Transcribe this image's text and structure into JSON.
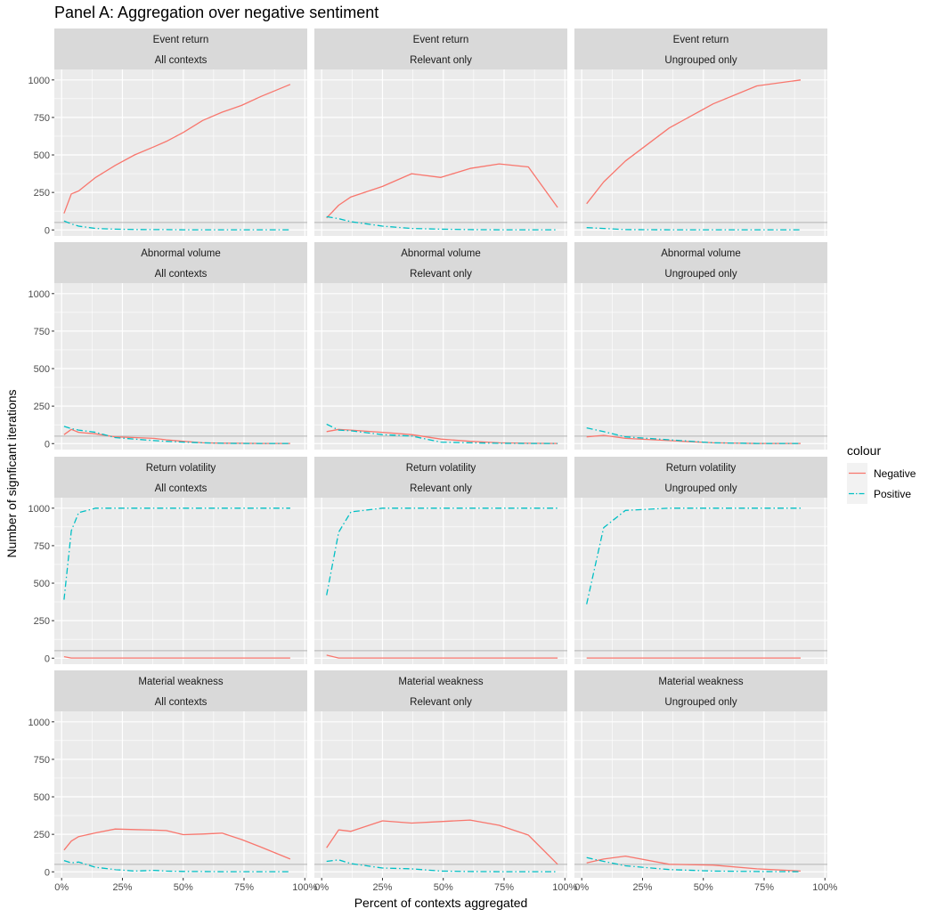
{
  "title": "Panel A: Aggregation over negative sentiment",
  "chart_data": {
    "type": "line",
    "title": "Panel A: Aggregation over negative sentiment",
    "xlabel": "Percent of contexts aggregated",
    "ylabel": "Number of signficant iterations",
    "xlim": [
      -3,
      101
    ],
    "ylim": [
      -40,
      1070
    ],
    "x_ticks": [
      0,
      25,
      50,
      75,
      100
    ],
    "x_tick_labels": [
      "0%",
      "25%",
      "50%",
      "75%",
      "100%"
    ],
    "y_ticks": [
      0,
      250,
      500,
      750,
      1000
    ],
    "y_tick_labels": [
      "0",
      "250",
      "500",
      "750",
      "1000"
    ],
    "reference_line_y": 50,
    "grid": true,
    "legend": {
      "title": "colour",
      "position": "right",
      "entries": [
        {
          "name": "Negative",
          "color": "#F8766D",
          "dash": "solid"
        },
        {
          "name": "Positive",
          "color": "#00BFC4",
          "dash": "dashdot"
        }
      ]
    },
    "row_labels": [
      "Event return",
      "Abnormal volume",
      "Return volatility",
      "Material weakness"
    ],
    "col_labels": [
      "All contexts",
      "Relevant only",
      "Ungrouped only"
    ],
    "panels": [
      [
        {
          "series": [
            {
              "name": "Negative",
              "x": [
                1,
                4,
                7,
                14,
                22,
                30,
                38,
                43,
                50,
                58,
                66,
                74,
                82,
                94
              ],
              "y": [
                110,
                240,
                260,
                350,
                430,
                500,
                555,
                590,
                650,
                730,
                785,
                830,
                890,
                970
              ]
            },
            {
              "name": "Positive",
              "x": [
                1,
                4,
                7,
                14,
                22,
                30,
                38,
                43,
                50,
                58,
                66,
                74,
                82,
                94
              ],
              "y": [
                60,
                40,
                25,
                10,
                5,
                3,
                2,
                2,
                1,
                1,
                1,
                1,
                1,
                1
              ]
            }
          ]
        },
        {
          "series": [
            {
              "name": "Negative",
              "x": [
                2,
                7,
                12,
                25,
                37,
                49,
                61,
                73,
                85,
                97
              ],
              "y": [
                80,
                165,
                220,
                290,
                375,
                350,
                410,
                440,
                420,
                150
              ]
            },
            {
              "name": "Positive",
              "x": [
                2,
                7,
                12,
                25,
                37,
                49,
                61,
                73,
                85,
                97
              ],
              "y": [
                88,
                75,
                55,
                25,
                10,
                5,
                2,
                1,
                1,
                1
              ]
            }
          ]
        },
        {
          "series": [
            {
              "name": "Negative",
              "x": [
                2,
                9,
                18,
                36,
                54,
                72,
                90
              ],
              "y": [
                175,
                320,
                460,
                680,
                840,
                960,
                1000
              ]
            },
            {
              "name": "Positive",
              "x": [
                2,
                9,
                18,
                36,
                54,
                72,
                90
              ],
              "y": [
                15,
                10,
                2,
                1,
                1,
                1,
                1
              ]
            }
          ]
        }
      ],
      [
        {
          "series": [
            {
              "name": "Negative",
              "x": [
                1,
                4,
                7,
                14,
                22,
                30,
                38,
                43,
                50,
                58,
                66,
                74,
                82,
                94
              ],
              "y": [
                60,
                95,
                75,
                65,
                45,
                40,
                35,
                25,
                15,
                5,
                3,
                2,
                1,
                1
              ]
            },
            {
              "name": "Positive",
              "x": [
                1,
                4,
                7,
                14,
                22,
                30,
                38,
                43,
                50,
                58,
                66,
                74,
                82,
                94
              ],
              "y": [
                115,
                100,
                90,
                75,
                40,
                30,
                20,
                15,
                10,
                5,
                2,
                1,
                1,
                1
              ]
            }
          ]
        },
        {
          "series": [
            {
              "name": "Negative",
              "x": [
                2,
                7,
                12,
                25,
                37,
                49,
                61,
                73,
                85,
                97
              ],
              "y": [
                80,
                95,
                90,
                75,
                60,
                30,
                15,
                5,
                2,
                1
              ]
            },
            {
              "name": "Positive",
              "x": [
                2,
                7,
                12,
                25,
                37,
                49,
                61,
                73,
                85,
                97
              ],
              "y": [
                130,
                90,
                85,
                60,
                50,
                10,
                5,
                2,
                1,
                1
              ]
            }
          ]
        },
        {
          "series": [
            {
              "name": "Negative",
              "x": [
                2,
                9,
                18,
                36,
                54,
                72,
                90
              ],
              "y": [
                45,
                55,
                35,
                20,
                5,
                1,
                1
              ]
            },
            {
              "name": "Positive",
              "x": [
                2,
                9,
                18,
                36,
                54,
                72,
                90
              ],
              "y": [
                105,
                80,
                45,
                25,
                5,
                1,
                1
              ]
            }
          ]
        }
      ],
      [
        {
          "series": [
            {
              "name": "Negative",
              "x": [
                1,
                4,
                7,
                14,
                22,
                30,
                38,
                43,
                50,
                58,
                66,
                74,
                82,
                94
              ],
              "y": [
                10,
                1,
                1,
                1,
                1,
                1,
                1,
                1,
                1,
                1,
                1,
                1,
                1,
                1
              ]
            },
            {
              "name": "Positive",
              "x": [
                1,
                4,
                7,
                14,
                22,
                30,
                38,
                43,
                50,
                58,
                66,
                74,
                82,
                94
              ],
              "y": [
                390,
                850,
                970,
                1000,
                1000,
                1000,
                1000,
                1000,
                1000,
                1000,
                1000,
                1000,
                1000,
                1000
              ]
            }
          ]
        },
        {
          "series": [
            {
              "name": "Negative",
              "x": [
                2,
                7,
                12,
                25,
                37,
                49,
                61,
                73,
                85,
                97
              ],
              "y": [
                20,
                1,
                1,
                1,
                1,
                1,
                1,
                1,
                1,
                1
              ]
            },
            {
              "name": "Positive",
              "x": [
                2,
                7,
                12,
                25,
                37,
                49,
                61,
                73,
                85,
                97
              ],
              "y": [
                420,
                840,
                975,
                1000,
                1000,
                1000,
                1000,
                1000,
                1000,
                1000
              ]
            }
          ]
        },
        {
          "series": [
            {
              "name": "Negative",
              "x": [
                2,
                9,
                18,
                36,
                54,
                72,
                90
              ],
              "y": [
                1,
                1,
                1,
                1,
                1,
                1,
                1
              ]
            },
            {
              "name": "Positive",
              "x": [
                2,
                9,
                18,
                36,
                54,
                72,
                90
              ],
              "y": [
                360,
                870,
                985,
                1000,
                1000,
                1000,
                1000
              ]
            }
          ]
        }
      ],
      [
        {
          "series": [
            {
              "name": "Negative",
              "x": [
                1,
                4,
                7,
                14,
                22,
                30,
                38,
                43,
                50,
                58,
                66,
                74,
                82,
                94
              ],
              "y": [
                145,
                205,
                235,
                260,
                285,
                282,
                278,
                275,
                248,
                252,
                258,
                215,
                165,
                85
              ]
            },
            {
              "name": "Positive",
              "x": [
                1,
                4,
                7,
                14,
                22,
                30,
                38,
                43,
                50,
                58,
                66,
                74,
                82,
                94
              ],
              "y": [
                75,
                60,
                65,
                30,
                15,
                5,
                10,
                5,
                3,
                2,
                1,
                1,
                1,
                1
              ]
            }
          ]
        },
        {
          "series": [
            {
              "name": "Negative",
              "x": [
                2,
                7,
                12,
                25,
                37,
                49,
                61,
                73,
                85,
                97
              ],
              "y": [
                160,
                280,
                270,
                340,
                325,
                335,
                345,
                310,
                245,
                50
              ]
            },
            {
              "name": "Positive",
              "x": [
                2,
                7,
                12,
                25,
                37,
                49,
                61,
                73,
                85,
                97
              ],
              "y": [
                70,
                80,
                55,
                25,
                20,
                5,
                2,
                1,
                1,
                1
              ]
            }
          ]
        },
        {
          "series": [
            {
              "name": "Negative",
              "x": [
                2,
                9,
                18,
                36,
                54,
                72,
                90
              ],
              "y": [
                60,
                85,
                105,
                50,
                45,
                20,
                5
              ]
            },
            {
              "name": "Positive",
              "x": [
                2,
                9,
                18,
                36,
                54,
                72,
                90
              ],
              "y": [
                95,
                70,
                40,
                15,
                5,
                2,
                1
              ]
            }
          ]
        }
      ]
    ]
  }
}
